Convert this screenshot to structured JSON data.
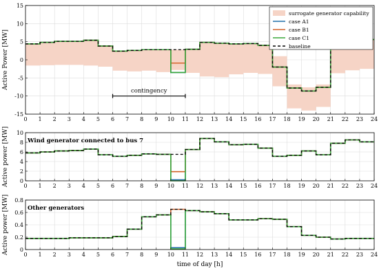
{
  "chart_data": [
    {
      "type": "line",
      "step": true,
      "xlabel": "",
      "ylabel": "Active Power [MW]",
      "xlim": [
        0,
        24
      ],
      "ylim": [
        -15,
        15
      ],
      "yticks": [
        -15,
        -10,
        -5,
        0,
        5,
        10,
        15
      ],
      "xticks": [
        0,
        1,
        2,
        3,
        4,
        5,
        6,
        7,
        8,
        9,
        10,
        11,
        12,
        13,
        14,
        15,
        16,
        17,
        18,
        19,
        20,
        21,
        22,
        23,
        24
      ],
      "grid": true,
      "legend_position": "top-right",
      "band": {
        "name": "surrogate generator capability",
        "color": "#f6d4c6",
        "upper": [
          4.4,
          4.8,
          5.1,
          5.1,
          5.4,
          3.8,
          2.4,
          2.6,
          2.8,
          2.8,
          2.8,
          2.9,
          4.8,
          4.6,
          4.4,
          4.5,
          4.0,
          1.0,
          -6.8,
          -7.6,
          -6.8,
          5.8,
          5.9,
          5.6
        ],
        "lower": [
          -1.6,
          -1.5,
          -1.4,
          -1.4,
          -1.6,
          -1.9,
          -3.0,
          -3.2,
          -3.0,
          -3.4,
          -2.8,
          -3.6,
          -4.6,
          -4.8,
          -4.0,
          -3.6,
          -3.9,
          -7.3,
          -13.4,
          -14.0,
          -13.0,
          -3.7,
          -2.9,
          -2.5
        ]
      },
      "series": [
        {
          "name": "case A1",
          "color": "#1f6fa8",
          "dash": "",
          "values": [
            4.4,
            4.8,
            5.1,
            5.1,
            5.4,
            3.8,
            2.4,
            2.6,
            2.8,
            2.8,
            -3.5,
            2.9,
            4.8,
            4.6,
            4.4,
            4.5,
            4.0,
            -2.0,
            -7.8,
            -8.6,
            -7.6,
            5.5,
            5.5,
            5.6
          ]
        },
        {
          "name": "case B1",
          "color": "#d4632a",
          "dash": "",
          "values": [
            4.4,
            4.8,
            5.1,
            5.1,
            5.4,
            3.8,
            2.4,
            2.6,
            2.8,
            2.8,
            -0.9,
            2.9,
            4.8,
            4.6,
            4.4,
            4.5,
            4.0,
            -2.0,
            -7.8,
            -8.6,
            -7.6,
            5.5,
            5.5,
            5.6
          ]
        },
        {
          "name": "case C1",
          "color": "#3aa83a",
          "dash": "",
          "values": [
            4.4,
            4.8,
            5.1,
            5.1,
            5.4,
            3.8,
            2.4,
            2.6,
            2.8,
            2.8,
            -3.5,
            2.9,
            4.8,
            4.6,
            4.4,
            4.5,
            4.0,
            -2.0,
            -7.8,
            -8.6,
            -7.6,
            5.5,
            5.5,
            5.6
          ]
        },
        {
          "name": "baseline",
          "color": "#000000",
          "dash": "4,3",
          "values": [
            4.4,
            4.8,
            5.1,
            5.1,
            5.4,
            3.8,
            2.4,
            2.6,
            2.8,
            2.8,
            2.8,
            2.9,
            4.8,
            4.6,
            4.4,
            4.5,
            4.0,
            -2.0,
            -7.8,
            -8.6,
            -7.6,
            5.5,
            5.5,
            5.6
          ]
        }
      ],
      "annotation": {
        "label": "contingency",
        "x_start": 6,
        "x_end": 11,
        "y": -10
      }
    },
    {
      "type": "line",
      "step": true,
      "title": "Wind generator connected to bus 7",
      "xlabel": "",
      "ylabel": "Active power [MW]",
      "xlim": [
        0,
        24
      ],
      "ylim": [
        0,
        10
      ],
      "yticks": [
        0,
        2,
        4,
        6,
        8,
        10
      ],
      "xticks": [
        0,
        1,
        2,
        3,
        4,
        5,
        6,
        7,
        8,
        9,
        10,
        11,
        12,
        13,
        14,
        15,
        16,
        17,
        18,
        19,
        20,
        21,
        22,
        23,
        24
      ],
      "grid": true,
      "series": [
        {
          "name": "case A1",
          "color": "#1f6fa8",
          "dash": "",
          "values": [
            5.8,
            6.0,
            6.2,
            6.3,
            6.6,
            5.4,
            5.1,
            5.3,
            5.6,
            5.5,
            0.2,
            6.5,
            8.8,
            8.1,
            7.5,
            7.6,
            6.8,
            5.1,
            5.3,
            6.2,
            5.4,
            7.8,
            8.5,
            8.1
          ]
        },
        {
          "name": "case B1",
          "color": "#d4632a",
          "dash": "",
          "values": [
            5.8,
            6.0,
            6.2,
            6.3,
            6.6,
            5.4,
            5.1,
            5.3,
            5.6,
            5.5,
            1.9,
            6.5,
            8.8,
            8.1,
            7.5,
            7.6,
            6.8,
            5.1,
            5.3,
            6.2,
            5.4,
            7.8,
            8.5,
            8.1
          ]
        },
        {
          "name": "case C1",
          "color": "#3aa83a",
          "dash": "",
          "values": [
            5.8,
            6.0,
            6.2,
            6.3,
            6.6,
            5.4,
            5.1,
            5.3,
            5.6,
            5.5,
            0.0,
            6.5,
            8.8,
            8.1,
            7.5,
            7.6,
            6.8,
            5.1,
            5.3,
            6.2,
            5.4,
            7.8,
            8.5,
            8.1
          ]
        },
        {
          "name": "baseline",
          "color": "#000000",
          "dash": "4,3",
          "values": [
            5.8,
            6.0,
            6.2,
            6.3,
            6.6,
            5.4,
            5.1,
            5.3,
            5.6,
            5.5,
            5.5,
            6.5,
            8.8,
            8.1,
            7.5,
            7.6,
            6.8,
            5.1,
            5.3,
            6.2,
            5.4,
            7.8,
            8.5,
            8.1
          ]
        }
      ]
    },
    {
      "type": "line",
      "step": true,
      "title": "Other generators",
      "xlabel": "time of day [h]",
      "ylabel": "Active power [MW]",
      "xlim": [
        0,
        24
      ],
      "ylim": [
        0,
        0.8
      ],
      "yticks": [
        0,
        0.2,
        0.4,
        0.6,
        0.8
      ],
      "xticks": [
        0,
        1,
        2,
        3,
        4,
        5,
        6,
        7,
        8,
        9,
        10,
        11,
        12,
        13,
        14,
        15,
        16,
        17,
        18,
        19,
        20,
        21,
        22,
        23,
        24
      ],
      "grid": true,
      "series": [
        {
          "name": "case A1",
          "color": "#1f6fa8",
          "dash": "",
          "values": [
            0.18,
            0.18,
            0.18,
            0.19,
            0.19,
            0.19,
            0.21,
            0.33,
            0.53,
            0.56,
            0.03,
            0.63,
            0.61,
            0.58,
            0.48,
            0.48,
            0.5,
            0.49,
            0.37,
            0.23,
            0.2,
            0.17,
            0.18,
            0.18
          ]
        },
        {
          "name": "case B1",
          "color": "#d4632a",
          "dash": "",
          "values": [
            0.18,
            0.18,
            0.18,
            0.19,
            0.19,
            0.19,
            0.21,
            0.33,
            0.53,
            0.56,
            0.65,
            0.63,
            0.61,
            0.58,
            0.48,
            0.48,
            0.5,
            0.49,
            0.37,
            0.23,
            0.2,
            0.17,
            0.18,
            0.18
          ]
        },
        {
          "name": "case C1",
          "color": "#3aa83a",
          "dash": "",
          "values": [
            0.18,
            0.18,
            0.18,
            0.19,
            0.19,
            0.19,
            0.21,
            0.33,
            0.53,
            0.56,
            0.01,
            0.63,
            0.61,
            0.58,
            0.48,
            0.48,
            0.5,
            0.49,
            0.37,
            0.23,
            0.2,
            0.17,
            0.18,
            0.18
          ]
        },
        {
          "name": "baseline",
          "color": "#000000",
          "dash": "4,3",
          "values": [
            0.18,
            0.18,
            0.18,
            0.19,
            0.19,
            0.19,
            0.21,
            0.33,
            0.53,
            0.56,
            0.65,
            0.63,
            0.61,
            0.58,
            0.48,
            0.48,
            0.5,
            0.49,
            0.37,
            0.23,
            0.2,
            0.17,
            0.18,
            0.18
          ]
        }
      ]
    }
  ]
}
